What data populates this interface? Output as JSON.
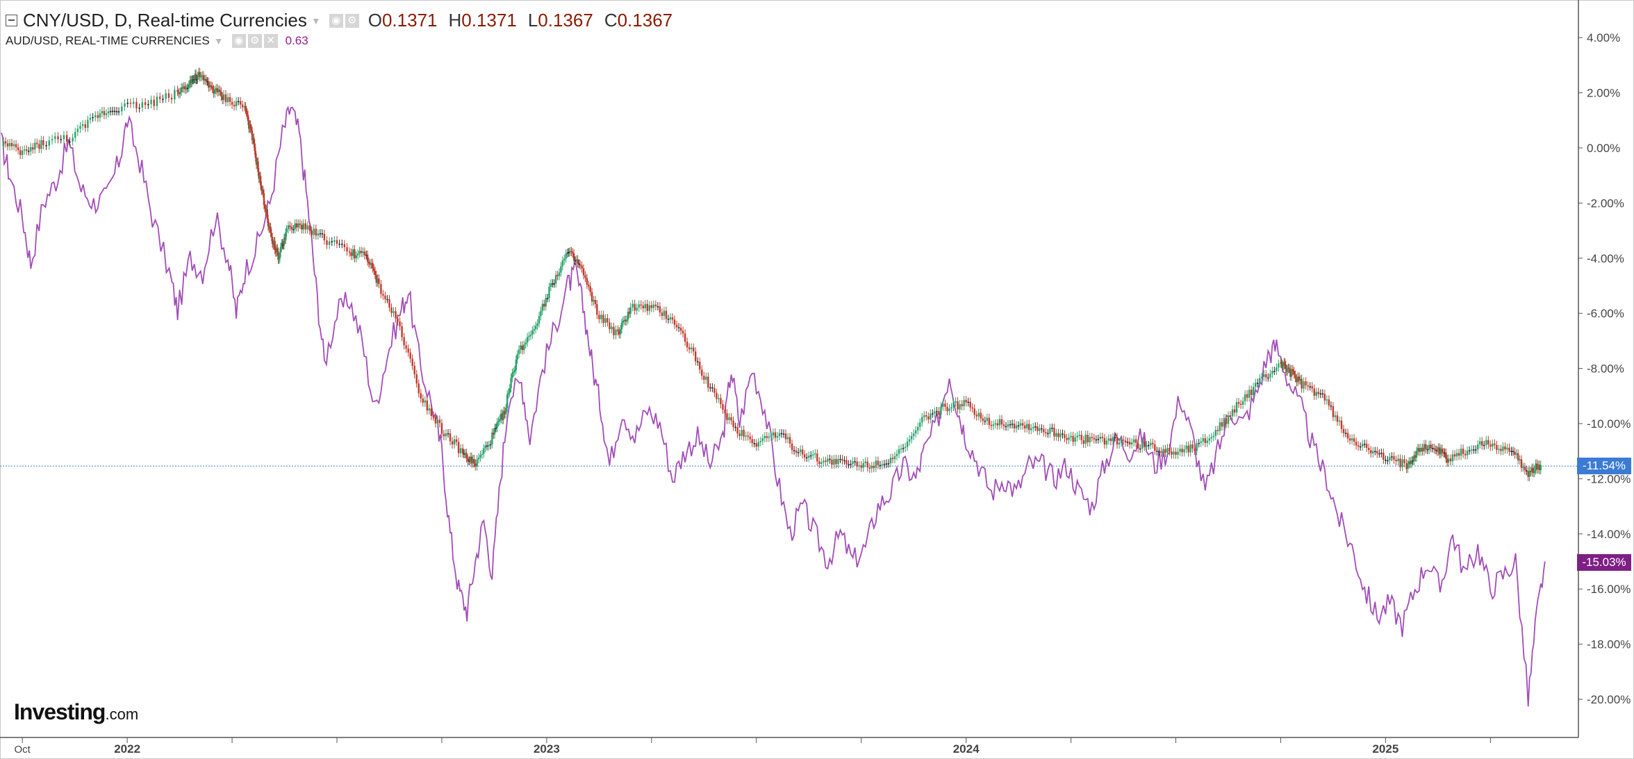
{
  "legend": {
    "symbol": "CNY/USD, D, Real-time Currencies",
    "open_key": "O",
    "open_val": "0.1371",
    "high_key": "H",
    "high_val": "0.1371",
    "low_key": "L",
    "low_val": "0.1367",
    "close_key": "C",
    "close_val": "0.1367",
    "compare_symbol": "AUD/USD, REAL-TIME CURRENCIES",
    "compare_value": "0.63"
  },
  "logo": {
    "main": "Investing",
    "suffix": ".com"
  },
  "price_tags": {
    "cny": "-11.54%",
    "aud": "-15.03%"
  },
  "colors": {
    "up": "#26a269",
    "down": "#c0392b",
    "neutral": "#222222",
    "aud_line": "#a24cb8",
    "cny_tag": "#3b7bd4",
    "aud_tag": "#7e1f86",
    "axis_text": "#444444"
  },
  "chart_data": {
    "type": "line",
    "title": "",
    "xlabel": "",
    "ylabel": "",
    "ylim": [
      -21,
      5
    ],
    "y_ticks": [
      "4.00%",
      "2.00%",
      "0.00%",
      "-2.00%",
      "-4.00%",
      "-6.00%",
      "-8.00%",
      "-10.00%",
      "-12.00%",
      "-14.00%",
      "-16.00%",
      "-18.00%",
      "-20.00%"
    ],
    "y_tick_values": [
      4,
      2,
      0,
      -2,
      -4,
      -6,
      -8,
      -10,
      -12,
      -14,
      -16,
      -18,
      -20
    ],
    "x_range": [
      2021.7,
      2025.43
    ],
    "x_ticks": [
      {
        "label": "Oct",
        "value": 2021.75
      },
      {
        "label": "2022",
        "value": 2022.0
      },
      {
        "label": "2023",
        "value": 2023.0
      },
      {
        "label": "2024",
        "value": 2024.0
      },
      {
        "label": "2025",
        "value": 2025.0
      }
    ],
    "minor_ticks": [
      2022.25,
      2022.5,
      2022.75,
      2023.25,
      2023.5,
      2023.75,
      2024.25,
      2024.5,
      2024.75,
      2025.25
    ],
    "series": [
      {
        "name": "CNY/USD, D, Real-time Currencies",
        "style": "candles",
        "points": [
          [
            2021.7,
            0.2
          ],
          [
            2021.75,
            -0.2
          ],
          [
            2021.8,
            0.2
          ],
          [
            2021.87,
            0.4
          ],
          [
            2021.93,
            1.2
          ],
          [
            2021.98,
            1.5
          ],
          [
            2022.05,
            1.6
          ],
          [
            2022.12,
            2.0
          ],
          [
            2022.15,
            2.4
          ],
          [
            2022.17,
            2.6
          ],
          [
            2022.2,
            2.2
          ],
          [
            2022.23,
            1.8
          ],
          [
            2022.28,
            1.5
          ],
          [
            2022.3,
            0.2
          ],
          [
            2022.32,
            -1.5
          ],
          [
            2022.34,
            -3.0
          ],
          [
            2022.36,
            -4.0
          ],
          [
            2022.38,
            -3.0
          ],
          [
            2022.42,
            -2.8
          ],
          [
            2022.47,
            -3.3
          ],
          [
            2022.53,
            -3.8
          ],
          [
            2022.57,
            -3.9
          ],
          [
            2022.6,
            -5.0
          ],
          [
            2022.65,
            -6.5
          ],
          [
            2022.7,
            -9.0
          ],
          [
            2022.75,
            -10.2
          ],
          [
            2022.8,
            -11.1
          ],
          [
            2022.83,
            -11.5
          ],
          [
            2022.87,
            -10.5
          ],
          [
            2022.9,
            -9.5
          ],
          [
            2022.93,
            -7.5
          ],
          [
            2022.97,
            -6.5
          ],
          [
            2023.01,
            -5.0
          ],
          [
            2023.05,
            -3.8
          ],
          [
            2023.08,
            -4.3
          ],
          [
            2023.12,
            -6.0
          ],
          [
            2023.17,
            -6.8
          ],
          [
            2023.2,
            -5.8
          ],
          [
            2023.25,
            -5.8
          ],
          [
            2023.3,
            -6.2
          ],
          [
            2023.35,
            -7.5
          ],
          [
            2023.4,
            -9.0
          ],
          [
            2023.45,
            -10.2
          ],
          [
            2023.5,
            -10.7
          ],
          [
            2023.55,
            -10.3
          ],
          [
            2023.6,
            -11.0
          ],
          [
            2023.65,
            -11.3
          ],
          [
            2023.7,
            -11.4
          ],
          [
            2023.75,
            -11.5
          ],
          [
            2023.8,
            -11.4
          ],
          [
            2023.85,
            -11.0
          ],
          [
            2023.9,
            -9.8
          ],
          [
            2023.95,
            -9.4
          ],
          [
            2024.0,
            -9.3
          ],
          [
            2024.05,
            -9.9
          ],
          [
            2024.1,
            -10.0
          ],
          [
            2024.15,
            -10.1
          ],
          [
            2024.2,
            -10.3
          ],
          [
            2024.25,
            -10.5
          ],
          [
            2024.3,
            -10.6
          ],
          [
            2024.35,
            -10.6
          ],
          [
            2024.4,
            -10.7
          ],
          [
            2024.45,
            -10.9
          ],
          [
            2024.5,
            -11.0
          ],
          [
            2024.55,
            -10.8
          ],
          [
            2024.6,
            -10.2
          ],
          [
            2024.65,
            -9.3
          ],
          [
            2024.7,
            -8.5
          ],
          [
            2024.75,
            -7.8
          ],
          [
            2024.77,
            -8.1
          ],
          [
            2024.8,
            -8.6
          ],
          [
            2024.85,
            -9.0
          ],
          [
            2024.9,
            -10.3
          ],
          [
            2024.95,
            -10.9
          ],
          [
            2025.0,
            -11.3
          ],
          [
            2025.05,
            -11.5
          ],
          [
            2025.08,
            -10.9
          ],
          [
            2025.12,
            -10.9
          ],
          [
            2025.15,
            -11.3
          ],
          [
            2025.2,
            -10.9
          ],
          [
            2025.25,
            -10.7
          ],
          [
            2025.3,
            -11.0
          ],
          [
            2025.34,
            -11.8
          ],
          [
            2025.37,
            -11.5
          ]
        ]
      },
      {
        "name": "AUD/USD, REAL-TIME CURRENCIES",
        "style": "line",
        "points": [
          [
            2021.7,
            0.2
          ],
          [
            2021.72,
            -1.0
          ],
          [
            2021.75,
            -2.5
          ],
          [
            2021.77,
            -4.2
          ],
          [
            2021.8,
            -2.0
          ],
          [
            2021.83,
            -1.2
          ],
          [
            2021.86,
            0.2
          ],
          [
            2021.89,
            -1.5
          ],
          [
            2021.92,
            -2.0
          ],
          [
            2021.95,
            -1.8
          ],
          [
            2021.98,
            -0.5
          ],
          [
            2022.0,
            1.0
          ],
          [
            2022.03,
            -0.5
          ],
          [
            2022.06,
            -2.5
          ],
          [
            2022.1,
            -4.5
          ],
          [
            2022.12,
            -5.9
          ],
          [
            2022.15,
            -4.0
          ],
          [
            2022.18,
            -4.5
          ],
          [
            2022.21,
            -2.5
          ],
          [
            2022.24,
            -4.0
          ],
          [
            2022.26,
            -6.0
          ],
          [
            2022.28,
            -4.5
          ],
          [
            2022.31,
            -3.5
          ],
          [
            2022.34,
            -2.0
          ],
          [
            2022.37,
            0.5
          ],
          [
            2022.39,
            1.5
          ],
          [
            2022.41,
            0.5
          ],
          [
            2022.43,
            -2.0
          ],
          [
            2022.45,
            -5.0
          ],
          [
            2022.47,
            -7.8
          ],
          [
            2022.5,
            -6.0
          ],
          [
            2022.53,
            -5.5
          ],
          [
            2022.56,
            -7.0
          ],
          [
            2022.59,
            -9.5
          ],
          [
            2022.62,
            -7.5
          ],
          [
            2022.65,
            -6.0
          ],
          [
            2022.67,
            -5.2
          ],
          [
            2022.7,
            -8.0
          ],
          [
            2022.73,
            -9.5
          ],
          [
            2022.75,
            -11.0
          ],
          [
            2022.77,
            -14.0
          ],
          [
            2022.79,
            -16.0
          ],
          [
            2022.81,
            -16.8
          ],
          [
            2022.83,
            -15.0
          ],
          [
            2022.85,
            -13.5
          ],
          [
            2022.87,
            -15.5
          ],
          [
            2022.89,
            -12.0
          ],
          [
            2022.91,
            -9.0
          ],
          [
            2022.94,
            -8.5
          ],
          [
            2022.96,
            -10.5
          ],
          [
            2022.99,
            -8.0
          ],
          [
            2023.02,
            -6.5
          ],
          [
            2023.05,
            -5.0
          ],
          [
            2023.07,
            -4.5
          ],
          [
            2023.09,
            -6.0
          ],
          [
            2023.11,
            -8.0
          ],
          [
            2023.13,
            -9.5
          ],
          [
            2023.15,
            -11.5
          ],
          [
            2023.18,
            -9.5
          ],
          [
            2023.21,
            -10.5
          ],
          [
            2023.24,
            -9.5
          ],
          [
            2023.27,
            -10.0
          ],
          [
            2023.3,
            -12.0
          ],
          [
            2023.33,
            -11.0
          ],
          [
            2023.36,
            -10.5
          ],
          [
            2023.39,
            -11.5
          ],
          [
            2023.42,
            -10.5
          ],
          [
            2023.44,
            -8.0
          ],
          [
            2023.46,
            -10.0
          ],
          [
            2023.49,
            -8.0
          ],
          [
            2023.52,
            -9.5
          ],
          [
            2023.55,
            -12.0
          ],
          [
            2023.58,
            -14.0
          ],
          [
            2023.61,
            -13.0
          ],
          [
            2023.64,
            -14.0
          ],
          [
            2023.67,
            -15.0
          ],
          [
            2023.7,
            -14.0
          ],
          [
            2023.73,
            -15.0
          ],
          [
            2023.76,
            -14.5
          ],
          [
            2023.79,
            -13.0
          ],
          [
            2023.82,
            -12.5
          ],
          [
            2023.85,
            -11.5
          ],
          [
            2023.88,
            -12.0
          ],
          [
            2023.9,
            -11.0
          ],
          [
            2023.93,
            -10.0
          ],
          [
            2023.96,
            -8.2
          ],
          [
            2023.98,
            -9.5
          ],
          [
            2024.0,
            -10.5
          ],
          [
            2024.03,
            -11.5
          ],
          [
            2024.06,
            -12.5
          ],
          [
            2024.09,
            -12.0
          ],
          [
            2024.12,
            -12.5
          ],
          [
            2024.15,
            -11.5
          ],
          [
            2024.18,
            -11.5
          ],
          [
            2024.21,
            -12.0
          ],
          [
            2024.24,
            -11.5
          ],
          [
            2024.27,
            -12.5
          ],
          [
            2024.3,
            -13.0
          ],
          [
            2024.33,
            -11.5
          ],
          [
            2024.36,
            -10.5
          ],
          [
            2024.39,
            -11.0
          ],
          [
            2024.42,
            -10.5
          ],
          [
            2024.45,
            -11.5
          ],
          [
            2024.48,
            -11.0
          ],
          [
            2024.51,
            -9.0
          ],
          [
            2024.54,
            -10.5
          ],
          [
            2024.57,
            -12.5
          ],
          [
            2024.6,
            -11.0
          ],
          [
            2024.63,
            -9.5
          ],
          [
            2024.66,
            -10.0
          ],
          [
            2024.69,
            -9.0
          ],
          [
            2024.72,
            -7.5
          ],
          [
            2024.74,
            -7.2
          ],
          [
            2024.77,
            -8.5
          ],
          [
            2024.8,
            -9.5
          ],
          [
            2024.83,
            -11.0
          ],
          [
            2024.86,
            -12.0
          ],
          [
            2024.89,
            -13.5
          ],
          [
            2024.92,
            -14.5
          ],
          [
            2024.95,
            -16.0
          ],
          [
            2024.98,
            -17.0
          ],
          [
            2025.01,
            -16.5
          ],
          [
            2025.04,
            -17.3
          ],
          [
            2025.07,
            -16.0
          ],
          [
            2025.1,
            -15.0
          ],
          [
            2025.13,
            -16.0
          ],
          [
            2025.16,
            -14.0
          ],
          [
            2025.19,
            -15.5
          ],
          [
            2025.22,
            -14.5
          ],
          [
            2025.25,
            -16.0
          ],
          [
            2025.28,
            -15.5
          ],
          [
            2025.31,
            -15.0
          ],
          [
            2025.34,
            -20.0
          ],
          [
            2025.36,
            -17.0
          ],
          [
            2025.38,
            -15.0
          ]
        ]
      }
    ],
    "reference_line": -11.54,
    "legend_position": "top-left"
  }
}
